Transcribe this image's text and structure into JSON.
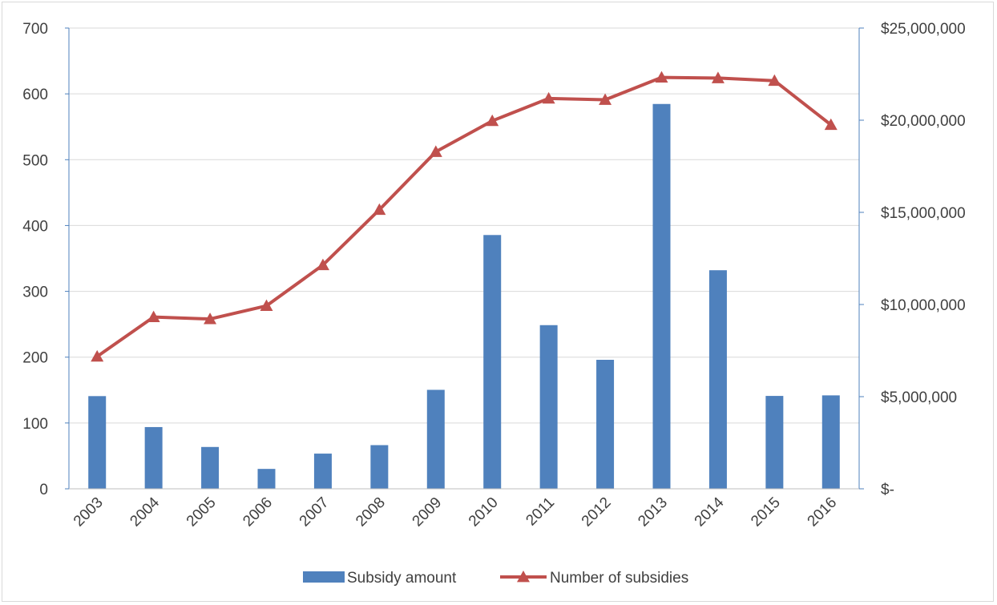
{
  "chart_data": {
    "type": "bar+line",
    "categories": [
      "2003",
      "2004",
      "2005",
      "2006",
      "2007",
      "2008",
      "2009",
      "2010",
      "2011",
      "2012",
      "2013",
      "2014",
      "2015",
      "2016"
    ],
    "series": [
      {
        "name": "Subsidy amount",
        "type": "bar",
        "axis": "right",
        "color": "#4f81bd",
        "values": [
          5030000,
          3350000,
          2270000,
          1080000,
          1910000,
          2370000,
          5370000,
          13770000,
          8880000,
          7000000,
          20880000,
          11860000,
          5040000,
          5070000
        ]
      },
      {
        "name": "Number of subsidies",
        "type": "line",
        "axis": "left",
        "color": "#c0504d",
        "marker": "triangle",
        "values": [
          201,
          261,
          258,
          278,
          340,
          424,
          512,
          559,
          593,
          591,
          625,
          624,
          620,
          553
        ]
      }
    ],
    "left_axis": {
      "ylim": [
        0,
        700
      ],
      "ticks": [
        0,
        100,
        200,
        300,
        400,
        500,
        600,
        700
      ],
      "tick_labels": [
        "0",
        "100",
        "200",
        "300",
        "400",
        "500",
        "600",
        "700"
      ]
    },
    "right_axis": {
      "ylim": [
        0,
        25000000
      ],
      "ticks": [
        0,
        5000000,
        10000000,
        15000000,
        20000000,
        25000000
      ],
      "tick_labels": [
        "$-",
        "$5,000,000",
        "$10,000,000",
        "$15,000,000",
        "$20,000,000",
        "$25,000,000"
      ]
    },
    "grid": true,
    "legend_position": "bottom",
    "title": "",
    "xlabel": "",
    "ylabel": ""
  }
}
